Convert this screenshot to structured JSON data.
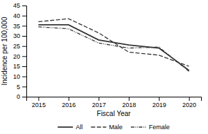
{
  "chart_data": {
    "type": "line",
    "xlabel": "Fiscal Year",
    "ylabel": "Incidence per 100,000",
    "x": [
      2015,
      2016,
      2017,
      2018,
      2019,
      2020
    ],
    "xlim": [
      2014.6,
      2020.4
    ],
    "xticks": [
      2015,
      2016,
      2017,
      2018,
      2019,
      2020
    ],
    "ylim": [
      0,
      45
    ],
    "yticks": [
      0,
      5,
      10,
      15,
      20,
      25,
      30,
      35,
      40,
      45
    ],
    "grid": false,
    "legend": "bottom",
    "series": [
      {
        "name": "All",
        "color": "#333333",
        "line_style": "solid",
        "values": [
          35.5,
          35.5,
          28.0,
          25.5,
          24.0,
          13.0
        ]
      },
      {
        "name": "Male",
        "color": "#333333",
        "line_style": "dashed",
        "values": [
          37.0,
          38.5,
          31.5,
          22.0,
          20.5,
          15.0
        ]
      },
      {
        "name": "Female",
        "color": "#333333",
        "line_style": "dashdotdot",
        "values": [
          34.5,
          33.5,
          26.5,
          24.0,
          24.5,
          12.5
        ]
      }
    ]
  }
}
